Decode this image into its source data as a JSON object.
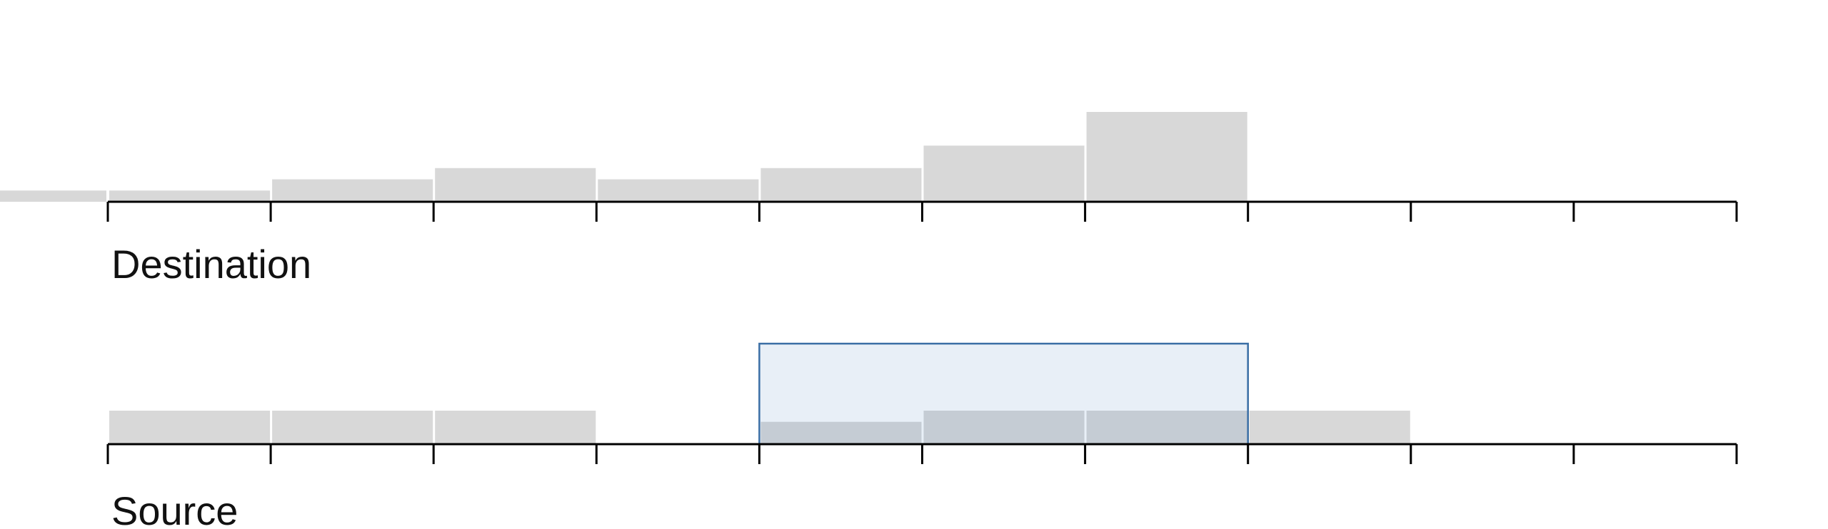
{
  "colors": {
    "bar": "#d8d8d8",
    "bar_in_selection": "#c5ccd4",
    "selection_fill": "#e8eff7",
    "selection_stroke": "#3a6ea5",
    "axis": "#000000",
    "bar_separator": "#ffffff"
  },
  "chart_data": [
    {
      "type": "bar",
      "title": "",
      "xlabel": "Destination",
      "ylabel": "",
      "bin_count": 10,
      "partial_bin_before_axis": 1,
      "values": [
        1,
        2,
        3,
        2,
        3,
        5,
        8,
        0,
        0,
        0
      ],
      "ylim": [
        0,
        8
      ]
    },
    {
      "type": "bar",
      "title": "",
      "xlabel": "Source",
      "ylabel": "",
      "bin_count": 10,
      "values": [
        3,
        3,
        3,
        0,
        2,
        3,
        3,
        3,
        0,
        0
      ],
      "ylim": [
        0,
        3
      ],
      "selection": {
        "from_bin": 4,
        "to_bin": 6
      }
    }
  ]
}
